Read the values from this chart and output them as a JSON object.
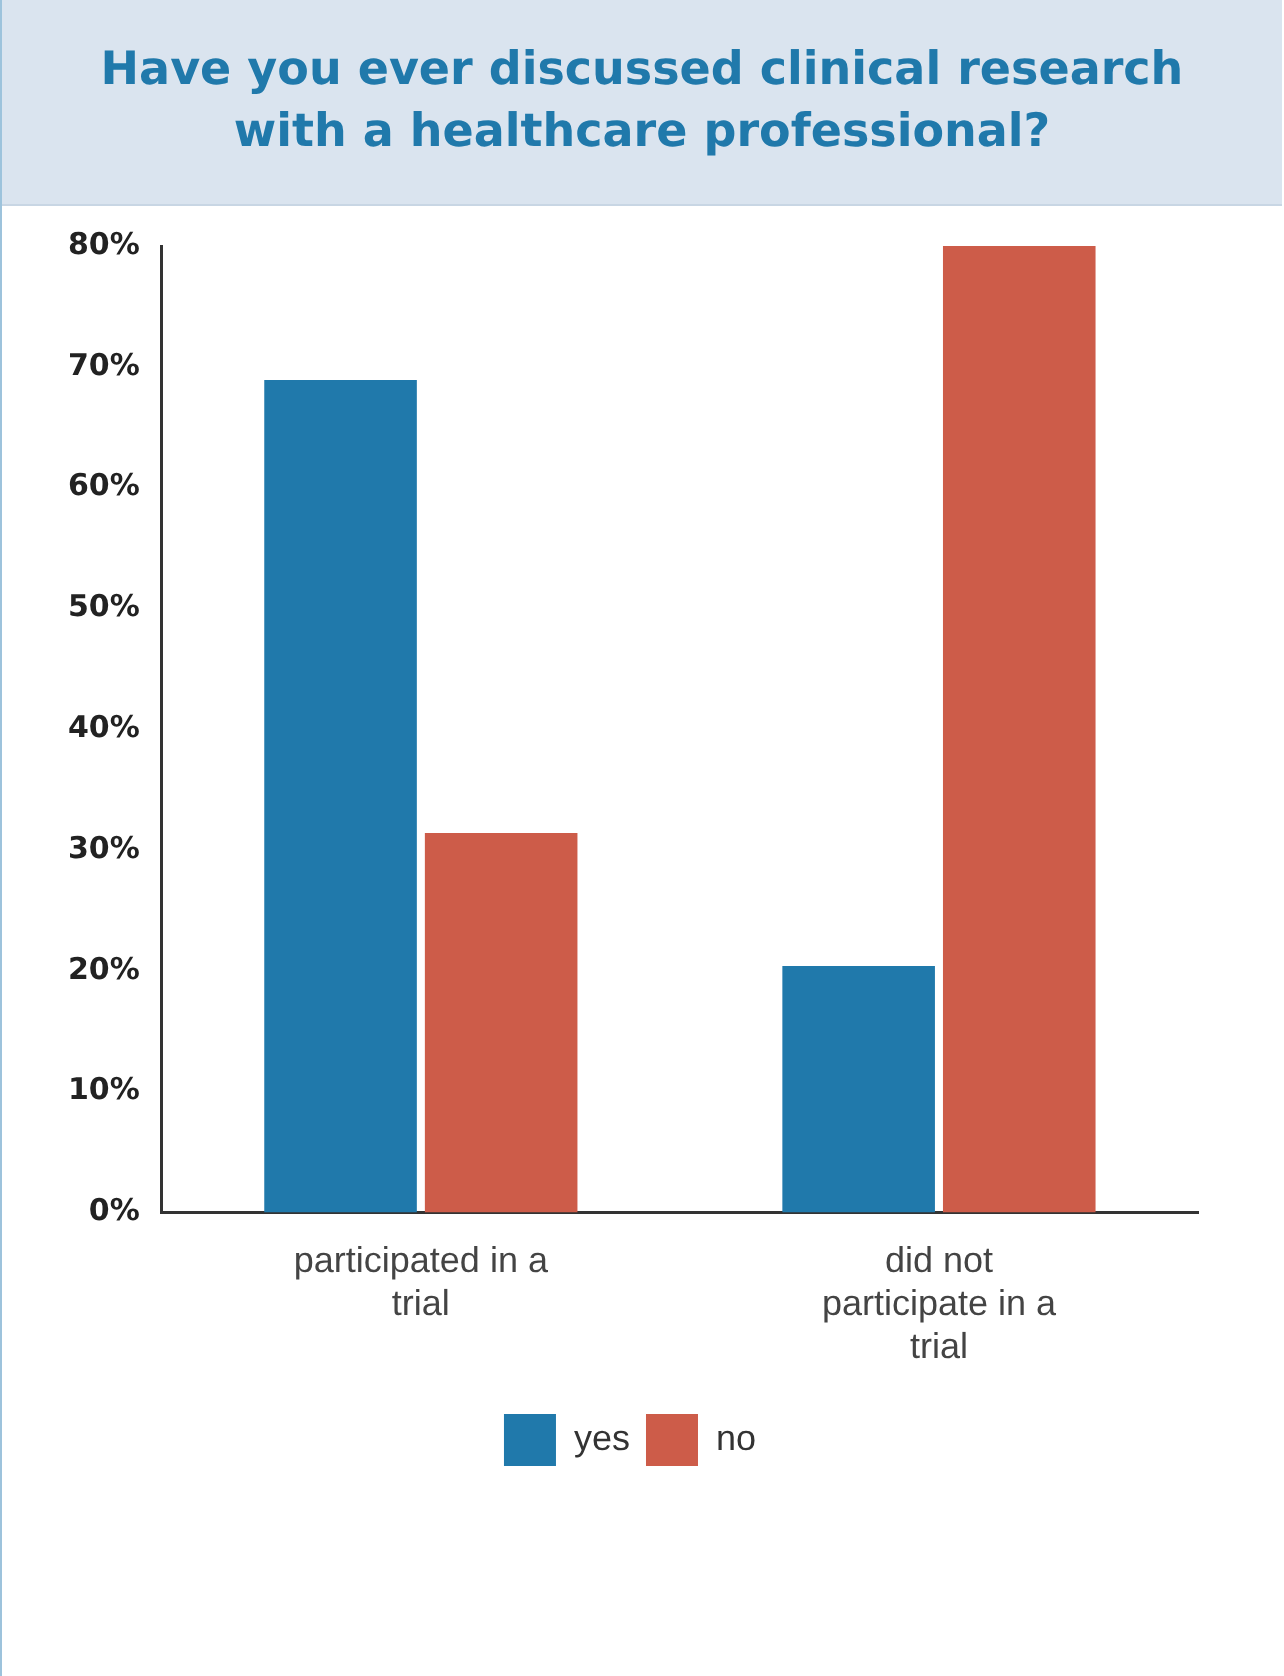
{
  "chart_data": {
    "type": "bar",
    "title": "Have you ever discussed clinical research with a healthcare professional?",
    "categories": [
      "participated in a trial",
      "did not participate in a trial"
    ],
    "series": [
      {
        "name": "yes",
        "color": "#2079ab",
        "values": [
          68.9,
          20.4
        ]
      },
      {
        "name": "no",
        "color": "#cd5c49",
        "values": [
          31.4,
          80
        ]
      }
    ],
    "ylim": [
      0,
      80
    ],
    "yticks": [
      {
        "value": 0,
        "label": "0%"
      },
      {
        "value": 10,
        "label": "10%"
      },
      {
        "value": 20,
        "label": "20%"
      },
      {
        "value": 30,
        "label": "30%"
      },
      {
        "value": 40,
        "label": "40%"
      },
      {
        "value": 50,
        "label": "50%"
      },
      {
        "value": 60,
        "label": "60%"
      },
      {
        "value": 70,
        "label": "70%"
      },
      {
        "value": 80,
        "label": "80%"
      }
    ],
    "grid": false,
    "legend": "bottom"
  }
}
